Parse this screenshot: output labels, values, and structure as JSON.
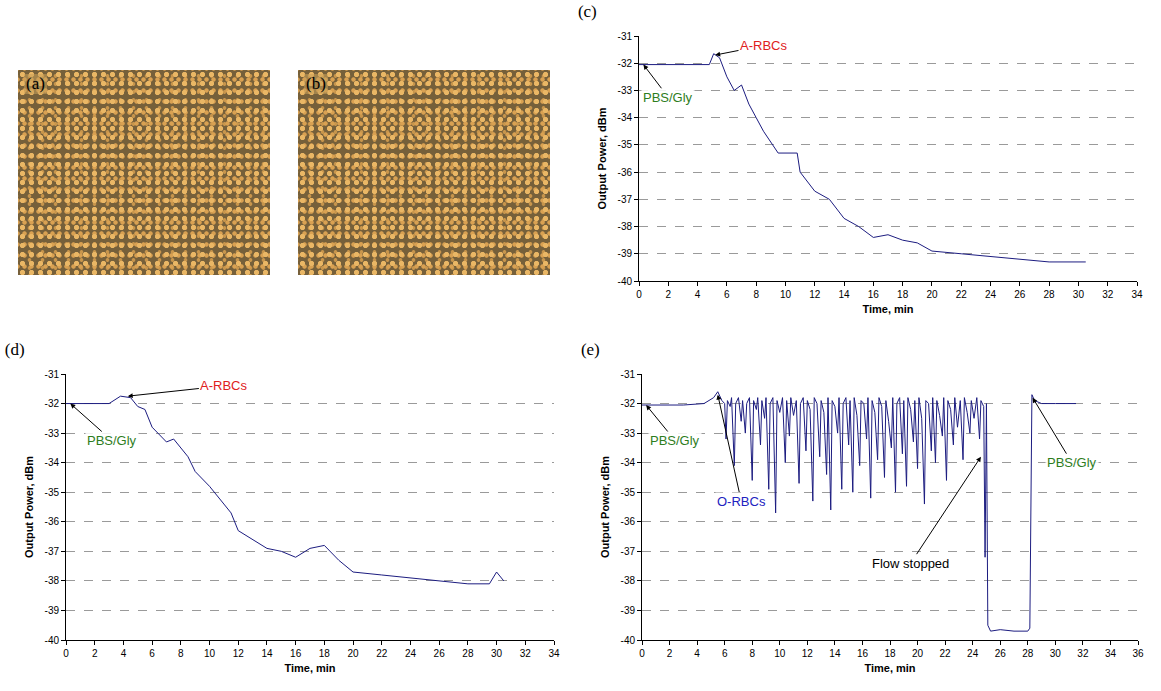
{
  "images": [
    {
      "label": "(a)"
    },
    {
      "label": "(b)"
    }
  ],
  "chart_data": [
    {
      "type": "line",
      "title": "(c)",
      "x_label": "Time, min",
      "y_label": "Output Power, dBm",
      "xlim": [
        0,
        34
      ],
      "xticks": [
        0,
        2,
        4,
        6,
        8,
        10,
        12,
        14,
        16,
        18,
        20,
        22,
        24,
        26,
        28,
        30,
        32,
        34
      ],
      "ylim": [
        -40,
        -31
      ],
      "yticks": [
        -40,
        -39,
        -38,
        -37,
        -36,
        -35,
        -34,
        -33,
        -32,
        -31
      ],
      "grid": true,
      "color": "#1c1c80",
      "x": [
        0,
        2,
        4,
        4.8,
        5.1,
        5.5,
        6,
        6.5,
        7,
        7.5,
        8,
        8.5,
        9.5,
        10.8,
        11,
        12,
        13,
        14,
        15,
        16,
        17,
        18,
        19,
        20,
        22,
        24,
        26,
        28,
        30.5
      ],
      "values": [
        -32.05,
        -32.05,
        -32.05,
        -32.05,
        -31.65,
        -31.8,
        -32.5,
        -33,
        -32.8,
        -33.5,
        -34,
        -34.5,
        -35.3,
        -35.3,
        -36,
        -36.7,
        -37,
        -37.7,
        -38,
        -38.4,
        -38.3,
        -38.5,
        -38.6,
        -38.9,
        -39,
        -39.1,
        -39.2,
        -39.3,
        -39.3
      ],
      "annotations": [
        {
          "text": "A-RBCs",
          "color": "#e0201c",
          "x": 5.2,
          "y": -31.7,
          "text_x": 8.5,
          "text_y": -31.35
        },
        {
          "text": "PBS/Gly",
          "color": "#2e7d1e",
          "x": 0.3,
          "y": -32.05,
          "text_x": 2,
          "text_y": -33.25
        }
      ]
    },
    {
      "type": "line",
      "title": "(d)",
      "x_label": "Time, min",
      "y_label": "Output Power, dBm",
      "xlim": [
        0,
        34
      ],
      "xticks": [
        0,
        2,
        4,
        6,
        8,
        10,
        12,
        14,
        16,
        18,
        20,
        22,
        24,
        26,
        28,
        30,
        32,
        34
      ],
      "ylim": [
        -40,
        -31
      ],
      "yticks": [
        -40,
        -39,
        -38,
        -37,
        -36,
        -35,
        -34,
        -33,
        -32,
        -31
      ],
      "grid": true,
      "color": "#1c1c80",
      "x": [
        0,
        2,
        3,
        3.8,
        4.5,
        5,
        5.5,
        6,
        7,
        7.5,
        8.5,
        9,
        10,
        11,
        11.5,
        12,
        13,
        14,
        15,
        16,
        17,
        18,
        19,
        20,
        22,
        24,
        26,
        28,
        29.5,
        30,
        30.5
      ],
      "values": [
        -32,
        -32,
        -32,
        -31.75,
        -31.8,
        -32.1,
        -32.2,
        -32.8,
        -33.3,
        -33.2,
        -33.8,
        -34.3,
        -34.8,
        -35.4,
        -35.7,
        -36.3,
        -36.6,
        -36.9,
        -37,
        -37.2,
        -36.9,
        -36.8,
        -37.3,
        -37.7,
        -37.8,
        -37.9,
        -38,
        -38.1,
        -38.1,
        -37.7,
        -38
      ],
      "annotations": [
        {
          "text": "A-RBCs",
          "color": "#e0201c",
          "x": 4.3,
          "y": -31.75,
          "text_x": 11,
          "text_y": -31.4
        },
        {
          "text": "PBS/Gly",
          "color": "#2e7d1e",
          "x": 0.3,
          "y": -32,
          "text_x": 3.2,
          "text_y": -33.25
        }
      ]
    },
    {
      "type": "line",
      "title": "(e)",
      "x_label": "Time, min",
      "y_label": "Output Power, dBm",
      "xlim": [
        0,
        36
      ],
      "xticks": [
        0,
        2,
        4,
        6,
        8,
        10,
        12,
        14,
        16,
        18,
        20,
        22,
        24,
        26,
        28,
        30,
        32,
        34,
        36
      ],
      "ylim": [
        -40,
        -31
      ],
      "yticks": [
        -40,
        -39,
        -38,
        -37,
        -36,
        -35,
        -34,
        -33,
        -32,
        -31
      ],
      "grid": true,
      "color": "#1c1c80",
      "x": [
        0,
        3,
        4.5,
        5.2,
        5.5,
        5.8,
        6.0,
        6.1,
        6.2,
        6.4,
        6.5,
        6.7,
        6.8,
        7.0,
        7.2,
        7.3,
        7.5,
        7.6,
        7.8,
        8.0,
        8.1,
        8.3,
        8.4,
        8.6,
        8.7,
        8.9,
        9.0,
        9.2,
        9.3,
        9.5,
        9.7,
        9.8,
        10.0,
        10.2,
        10.4,
        10.5,
        10.7,
        10.8,
        11.0,
        11.2,
        11.4,
        11.5,
        11.7,
        11.9,
        12.0,
        12.2,
        12.4,
        12.5,
        12.7,
        12.9,
        13.0,
        13.2,
        13.4,
        13.5,
        13.7,
        13.8,
        14.0,
        14.2,
        14.3,
        14.5,
        14.6,
        14.8,
        15.0,
        15.1,
        15.3,
        15.4,
        15.6,
        15.8,
        15.9,
        16.1,
        16.3,
        16.4,
        16.6,
        16.7,
        16.9,
        17.1,
        17.2,
        17.4,
        17.6,
        17.7,
        17.9,
        18.1,
        18.2,
        18.4,
        18.5,
        18.7,
        18.9,
        19.0,
        19.2,
        19.3,
        19.5,
        19.7,
        19.8,
        20.0,
        20.1,
        20.3,
        20.5,
        20.6,
        20.8,
        21.0,
        21.1,
        21.3,
        21.4,
        21.6,
        21.8,
        21.9,
        22.1,
        22.2,
        22.4,
        22.6,
        22.7,
        22.9,
        23.1,
        23.3,
        23.4,
        23.6,
        23.8,
        23.9,
        24.1,
        24.3,
        24.5,
        24.6,
        24.8,
        24.9,
        25.0,
        25.1,
        25.3,
        26,
        27,
        28,
        28.15,
        28.3,
        28.5,
        29,
        30,
        31.5
      ],
      "values": [
        -32.05,
        -32.05,
        -32.0,
        -31.8,
        -31.6,
        -31.9,
        -32.0,
        -33.2,
        -31.9,
        -32.1,
        -31.8,
        -34.1,
        -32.0,
        -31.8,
        -32.6,
        -31.9,
        -33.0,
        -32.0,
        -31.8,
        -34.6,
        -31.9,
        -32.2,
        -31.8,
        -33.4,
        -31.9,
        -32.5,
        -31.8,
        -34.9,
        -32.0,
        -31.8,
        -35.7,
        -31.9,
        -32.3,
        -31.8,
        -34.0,
        -31.9,
        -33.1,
        -31.8,
        -32.4,
        -31.9,
        -34.7,
        -32.0,
        -31.8,
        -33.6,
        -31.9,
        -32.2,
        -35.3,
        -31.8,
        -32.0,
        -33.8,
        -31.9,
        -32.3,
        -34.4,
        -31.8,
        -35.6,
        -31.9,
        -32.1,
        -33.0,
        -31.8,
        -34.9,
        -32.0,
        -31.8,
        -33.4,
        -31.9,
        -35.0,
        -31.8,
        -32.4,
        -34.1,
        -31.9,
        -32.0,
        -33.2,
        -31.8,
        -35.2,
        -31.9,
        -32.3,
        -33.9,
        -31.8,
        -32.1,
        -34.5,
        -31.9,
        -32.6,
        -33.5,
        -31.8,
        -35.0,
        -32.0,
        -31.8,
        -33.7,
        -31.9,
        -34.8,
        -31.8,
        -32.2,
        -33.3,
        -31.9,
        -34.2,
        -31.8,
        -32.5,
        -35.4,
        -31.9,
        -32.0,
        -33.6,
        -31.8,
        -34.0,
        -31.9,
        -32.4,
        -33.1,
        -31.8,
        -34.6,
        -31.9,
        -32.2,
        -33.4,
        -31.8,
        -32.8,
        -31.9,
        -33.9,
        -31.8,
        -32.3,
        -33.0,
        -31.9,
        -32.5,
        -31.8,
        -33.2,
        -31.9,
        -32.1,
        -37.2,
        -32.0,
        -39.5,
        -39.7,
        -39.65,
        -39.7,
        -39.7,
        -39.6,
        -31.7,
        -31.9,
        -32.0,
        -32.0,
        -32.0
      ],
      "annotations": [
        {
          "text": "PBS/Gly",
          "color": "#2e7d1e",
          "x": 0.3,
          "y": -32.05,
          "text_x": 2.4,
          "text_y": -33.25
        },
        {
          "text": "O-RBCs",
          "color": "#2222c0",
          "x": 5.5,
          "y": -31.7,
          "text_x": 7.2,
          "text_y": -35.3
        },
        {
          "text": "Flow stopped",
          "color": "#000000",
          "x": 24.6,
          "y": -33.8,
          "text_x": 19.5,
          "text_y": -37.4
        },
        {
          "text": "PBS/Gly",
          "color": "#2e7d1e",
          "x": 28.35,
          "y": -31.8,
          "text_x": 31.2,
          "text_y": -34.0
        }
      ]
    }
  ]
}
